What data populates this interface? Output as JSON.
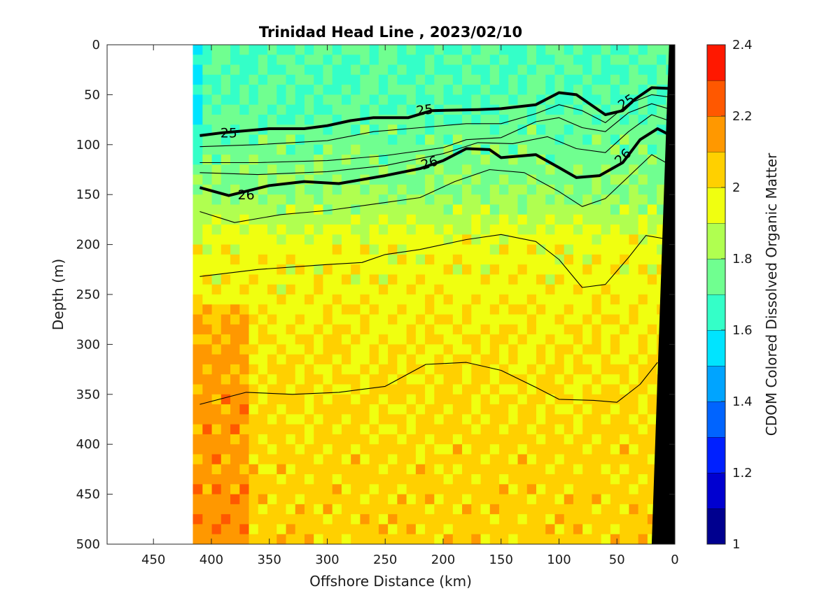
{
  "chart_data": {
    "type": "heatmap",
    "title": "Trinidad Head Line , 2023/02/10",
    "xlabel": "Offshore Distance (km)",
    "ylabel": "Depth (m)",
    "colorbar_label": "CDOM Colored Dissolved Organic Matter",
    "xlim": [
      490,
      0
    ],
    "ylim": [
      0,
      500
    ],
    "x_reversed": true,
    "y_reversed": true,
    "clim": [
      1,
      2.4
    ],
    "xticks": [
      {
        "value": 450,
        "label": "450"
      },
      {
        "value": 400,
        "label": "400"
      },
      {
        "value": 350,
        "label": "350"
      },
      {
        "value": 300,
        "label": "300"
      },
      {
        "value": 250,
        "label": "250"
      },
      {
        "value": 200,
        "label": "200"
      },
      {
        "value": 150,
        "label": "150"
      },
      {
        "value": 100,
        "label": "100"
      },
      {
        "value": 50,
        "label": "50"
      },
      {
        "value": 0,
        "label": "0"
      }
    ],
    "yticks": [
      {
        "value": 0,
        "label": "0"
      },
      {
        "value": 50,
        "label": "50"
      },
      {
        "value": 100,
        "label": "100"
      },
      {
        "value": 150,
        "label": "150"
      },
      {
        "value": 200,
        "label": "200"
      },
      {
        "value": 250,
        "label": "250"
      },
      {
        "value": 300,
        "label": "300"
      },
      {
        "value": 350,
        "label": "350"
      },
      {
        "value": 400,
        "label": "400"
      },
      {
        "value": 450,
        "label": "450"
      },
      {
        "value": 500,
        "label": "500"
      }
    ],
    "colorbar_levels": [
      1.0,
      1.1,
      1.2,
      1.3,
      1.4,
      1.5,
      1.6,
      1.7,
      1.8,
      1.9,
      2.0,
      2.1,
      2.2,
      2.3,
      2.4
    ],
    "colorbar_colors": [
      "#00008f",
      "#0000d0",
      "#0020ff",
      "#0064ff",
      "#00a4ff",
      "#00e4ff",
      "#34ffc8",
      "#70ff90",
      "#b0ff50",
      "#f0ff10",
      "#ffd000",
      "#ff9800",
      "#ff5800",
      "#ff1800",
      "#c80000"
    ],
    "colorbar_ticks": [
      {
        "value": 1.0,
        "label": "1"
      },
      {
        "value": 1.2,
        "label": "1.2"
      },
      {
        "value": 1.4,
        "label": "1.4"
      },
      {
        "value": 1.6,
        "label": "1.6"
      },
      {
        "value": 1.8,
        "label": "1.8"
      },
      {
        "value": 2.0,
        "label": "2"
      },
      {
        "value": 2.2,
        "label": "2.2"
      },
      {
        "value": 2.4,
        "label": "2.4"
      }
    ],
    "data_extent_km": 410,
    "cdom_profile": [
      {
        "depth": 0,
        "value": 1.7
      },
      {
        "depth": 60,
        "value": 1.7
      },
      {
        "depth": 100,
        "value": 1.75
      },
      {
        "depth": 150,
        "value": 1.8
      },
      {
        "depth": 200,
        "value": 1.95
      },
      {
        "depth": 300,
        "value": 2.0
      },
      {
        "depth": 500,
        "value": 2.05
      }
    ],
    "contours": [
      {
        "label": "25",
        "bold": true,
        "points": [
          [
            410,
            91
          ],
          [
            390,
            88
          ],
          [
            350,
            84
          ],
          [
            320,
            84
          ],
          [
            300,
            81
          ],
          [
            280,
            76
          ],
          [
            260,
            73
          ],
          [
            230,
            73
          ],
          [
            210,
            66
          ],
          [
            170,
            65
          ],
          [
            150,
            64
          ],
          [
            120,
            60
          ],
          [
            100,
            48
          ],
          [
            85,
            50
          ],
          [
            60,
            70
          ],
          [
            45,
            66
          ],
          [
            35,
            55
          ],
          [
            20,
            43
          ],
          [
            0,
            44
          ]
        ]
      },
      {
        "label": "26",
        "bold": true,
        "points": [
          [
            410,
            143
          ],
          [
            385,
            151
          ],
          [
            350,
            141
          ],
          [
            320,
            137
          ],
          [
            290,
            139
          ],
          [
            250,
            131
          ],
          [
            220,
            124
          ],
          [
            200,
            116
          ],
          [
            180,
            104
          ],
          [
            160,
            105
          ],
          [
            150,
            113
          ],
          [
            120,
            110
          ],
          [
            100,
            123
          ],
          [
            85,
            133
          ],
          [
            65,
            131
          ],
          [
            45,
            118
          ],
          [
            30,
            95
          ],
          [
            15,
            84
          ],
          [
            0,
            93
          ]
        ]
      },
      {
        "label": "",
        "bold": false,
        "points": [
          [
            410,
            118
          ],
          [
            360,
            118
          ],
          [
            300,
            116
          ],
          [
            250,
            111
          ],
          [
            200,
            103
          ],
          [
            180,
            95
          ],
          [
            150,
            93
          ],
          [
            120,
            77
          ],
          [
            100,
            73
          ],
          [
            80,
            83
          ],
          [
            60,
            87
          ],
          [
            40,
            68
          ],
          [
            20,
            59
          ],
          [
            0,
            66
          ]
        ]
      },
      {
        "label": "",
        "bold": false,
        "points": [
          [
            410,
            128
          ],
          [
            360,
            130
          ],
          [
            300,
            127
          ],
          [
            250,
            121
          ],
          [
            200,
            109
          ],
          [
            170,
            98
          ],
          [
            140,
            99
          ],
          [
            110,
            92
          ],
          [
            85,
            104
          ],
          [
            60,
            108
          ],
          [
            40,
            87
          ],
          [
            20,
            70
          ],
          [
            0,
            78
          ]
        ]
      },
      {
        "label": "",
        "bold": false,
        "points": [
          [
            410,
            102
          ],
          [
            360,
            100
          ],
          [
            300,
            96
          ],
          [
            260,
            87
          ],
          [
            220,
            83
          ],
          [
            180,
            79
          ],
          [
            150,
            79
          ],
          [
            120,
            69
          ],
          [
            100,
            60
          ],
          [
            80,
            66
          ],
          [
            60,
            78
          ],
          [
            40,
            59
          ],
          [
            20,
            50
          ],
          [
            0,
            53
          ]
        ]
      },
      {
        "label": "",
        "bold": false,
        "points": [
          [
            410,
            167
          ],
          [
            380,
            178
          ],
          [
            340,
            170
          ],
          [
            300,
            166
          ],
          [
            250,
            158
          ],
          [
            220,
            153
          ],
          [
            190,
            137
          ],
          [
            160,
            125
          ],
          [
            130,
            128
          ],
          [
            100,
            147
          ],
          [
            80,
            162
          ],
          [
            60,
            154
          ],
          [
            40,
            132
          ],
          [
            20,
            110
          ],
          [
            0,
            123
          ]
        ]
      },
      {
        "label": "",
        "bold": false,
        "points": [
          [
            410,
            232
          ],
          [
            360,
            225
          ],
          [
            300,
            220
          ],
          [
            270,
            218
          ],
          [
            250,
            210
          ],
          [
            220,
            205
          ],
          [
            180,
            195
          ],
          [
            150,
            190
          ],
          [
            120,
            197
          ],
          [
            100,
            215
          ],
          [
            80,
            243
          ],
          [
            60,
            240
          ],
          [
            40,
            213
          ],
          [
            25,
            191
          ],
          [
            10,
            194
          ]
        ]
      },
      {
        "label": "",
        "bold": false,
        "points": [
          [
            410,
            360
          ],
          [
            370,
            348
          ],
          [
            330,
            350
          ],
          [
            290,
            348
          ],
          [
            250,
            342
          ],
          [
            215,
            320
          ],
          [
            180,
            318
          ],
          [
            150,
            326
          ],
          [
            120,
            343
          ],
          [
            100,
            355
          ],
          [
            70,
            356
          ],
          [
            50,
            358
          ],
          [
            30,
            340
          ],
          [
            15,
            318
          ]
        ]
      }
    ],
    "contour_labels": [
      {
        "text": "25",
        "x": 385,
        "y": 88,
        "angle": 0
      },
      {
        "text": "25",
        "x": 216,
        "y": 65,
        "angle": -8
      },
      {
        "text": "25",
        "x": 42,
        "y": 57,
        "angle": -33
      },
      {
        "text": "26",
        "x": 370,
        "y": 150,
        "angle": 0
      },
      {
        "text": "26",
        "x": 212,
        "y": 118,
        "angle": -18
      },
      {
        "text": "26",
        "x": 45,
        "y": 112,
        "angle": -45
      }
    ],
    "topography": [
      [
        20,
        500
      ],
      [
        0,
        500
      ],
      [
        0,
        0
      ],
      [
        5,
        0
      ]
    ]
  }
}
